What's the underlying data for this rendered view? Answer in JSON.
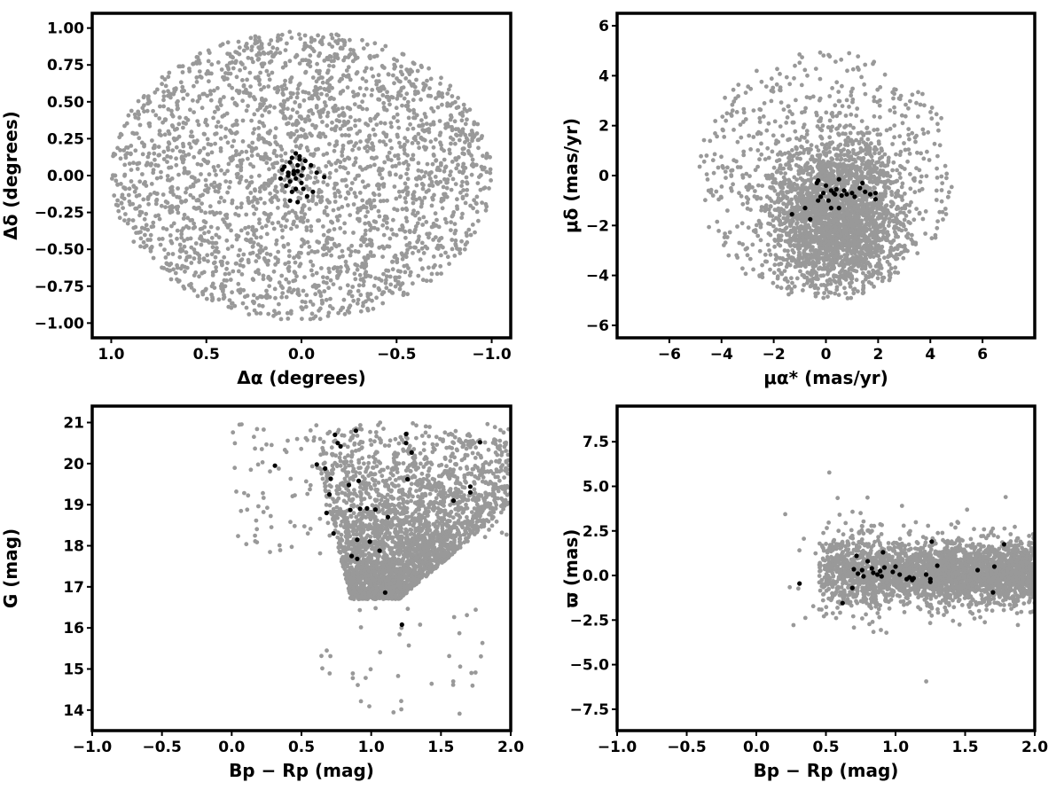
{
  "chart_data": [
    {
      "type": "scatter",
      "xlabel": "Δα (degrees)",
      "ylabel": "Δδ (degrees)",
      "xlim": [
        1.1,
        -1.1
      ],
      "ylim": [
        -1.1,
        1.1
      ],
      "x_inverted": true,
      "xticks": [
        1.0,
        0.5,
        0.0,
        -0.5,
        -1.0
      ],
      "xtick_labels": [
        "1.0",
        "0.5",
        "0.0",
        "−0.5",
        "−1.0"
      ],
      "yticks": [
        -1.0,
        -0.75,
        -0.5,
        -0.25,
        0.0,
        0.25,
        0.5,
        0.75,
        1.0
      ],
      "ytick_labels": [
        "−1.00",
        "−0.75",
        "−0.50",
        "−0.25",
        "0.00",
        "0.25",
        "0.50",
        "0.75",
        "1.00"
      ],
      "grid": false,
      "series": [
        {
          "color": "#999999",
          "distribution": "uniform disk",
          "center": [
            0.0,
            0.0
          ],
          "radius": [
            1.0,
            0.98
          ],
          "count": 2600
        },
        {
          "color": "#000000",
          "points": [
            [
              0.03,
              0.15
            ],
            [
              0.05,
              0.12
            ],
            [
              0.01,
              0.13
            ],
            [
              0.06,
              0.09
            ],
            [
              0.02,
              0.07
            ],
            [
              0.04,
              0.03
            ],
            [
              0.07,
              0.0
            ],
            [
              0.03,
              -0.02
            ],
            [
              0.06,
              -0.04
            ],
            [
              0.08,
              -0.07
            ],
            [
              0.05,
              -0.11
            ],
            [
              0.06,
              -0.17
            ],
            [
              0.02,
              -0.18
            ],
            [
              -0.01,
              -0.09
            ],
            [
              -0.03,
              -0.14
            ],
            [
              -0.06,
              -0.11
            ],
            [
              0.0,
              0.0
            ],
            [
              0.02,
              0.03
            ],
            [
              -0.01,
              0.05
            ],
            [
              0.01,
              0.11
            ],
            [
              0.09,
              0.06
            ],
            [
              0.1,
              0.04
            ],
            [
              0.03,
              -0.09
            ],
            [
              -0.02,
              0.1
            ],
            [
              -0.05,
              0.07
            ],
            [
              -0.08,
              0.02
            ],
            [
              0.11,
              -0.02
            ],
            [
              0.0,
              -0.05
            ],
            [
              -0.12,
              -0.01
            ],
            [
              0.04,
              0.01
            ],
            [
              0.07,
              0.02
            ]
          ]
        }
      ]
    },
    {
      "type": "scatter",
      "xlabel": "μα* (mas/yr)",
      "ylabel": "μδ (mas/yr)",
      "xlim": [
        -8.0,
        8.0
      ],
      "ylim": [
        -6.5,
        6.5
      ],
      "xticks": [
        -6,
        -4,
        -2,
        0,
        2,
        4,
        6
      ],
      "xtick_labels": [
        "−6",
        "−4",
        "−2",
        "0",
        "2",
        "4",
        "6"
      ],
      "yticks": [
        -6,
        -4,
        -2,
        0,
        2,
        4,
        6
      ],
      "ytick_labels": [
        "−6",
        "−4",
        "−2",
        "0",
        "2",
        "4",
        "6"
      ],
      "grid": false,
      "series": [
        {
          "color": "#999999",
          "distribution": "disk of radius 5 with dense core near (0.4, -1.5)",
          "count": 3000
        },
        {
          "color": "#000000",
          "points": [
            [
              -1.3,
              -1.55
            ],
            [
              -0.8,
              -1.3
            ],
            [
              -0.6,
              -1.75
            ],
            [
              -0.35,
              -0.3
            ],
            [
              -0.3,
              -0.2
            ],
            [
              -0.2,
              -0.85
            ],
            [
              -0.1,
              -0.7
            ],
            [
              0.0,
              -0.4
            ],
            [
              0.1,
              -1.0
            ],
            [
              0.2,
              -0.6
            ],
            [
              0.3,
              -0.7
            ],
            [
              0.4,
              -0.55
            ],
            [
              0.5,
              -0.15
            ],
            [
              0.6,
              -0.8
            ],
            [
              0.7,
              -0.6
            ],
            [
              0.8,
              -0.75
            ],
            [
              1.0,
              -0.7
            ],
            [
              1.1,
              -0.85
            ],
            [
              1.3,
              -0.5
            ],
            [
              1.4,
              -0.3
            ],
            [
              1.5,
              -0.65
            ],
            [
              1.7,
              -0.75
            ],
            [
              1.9,
              -0.7
            ],
            [
              1.9,
              -0.95
            ],
            [
              0.2,
              -1.3
            ],
            [
              0.5,
              -1.3
            ],
            [
              -0.3,
              -1.0
            ],
            [
              0.35,
              -0.75
            ]
          ]
        }
      ]
    },
    {
      "type": "scatter",
      "xlabel": "Bp − Rp (mag)",
      "ylabel": "G (mag)",
      "xlim": [
        -1.0,
        2.0
      ],
      "ylim": [
        13.5,
        21.4
      ],
      "xticks": [
        -1.0,
        -0.5,
        0.0,
        0.5,
        1.0,
        1.5,
        2.0
      ],
      "xtick_labels": [
        "−1.0",
        "−0.5",
        "0.0",
        "0.5",
        "1.0",
        "1.5",
        "2.0"
      ],
      "yticks": [
        14,
        15,
        16,
        17,
        18,
        19,
        20,
        21
      ],
      "ytick_labels": [
        "14",
        "15",
        "16",
        "17",
        "18",
        "19",
        "20",
        "21"
      ],
      "grid": false,
      "series": [
        {
          "color": "#999999",
          "distribution": "color-magnitude diagram, dense wedge from G 17 to 21",
          "count": 3000
        },
        {
          "color": "#000000",
          "points": [
            [
              0.31,
              19.95
            ],
            [
              0.61,
              19.98
            ],
            [
              0.67,
              19.88
            ],
            [
              0.7,
              19.25
            ],
            [
              0.71,
              19.63
            ],
            [
              0.68,
              18.8
            ],
            [
              0.73,
              18.3
            ],
            [
              0.74,
              20.7
            ],
            [
              0.76,
              20.5
            ],
            [
              0.78,
              20.42
            ],
            [
              0.84,
              19.48
            ],
            [
              0.85,
              18.87
            ],
            [
              0.86,
              17.75
            ],
            [
              0.89,
              20.8
            ],
            [
              0.91,
              19.58
            ],
            [
              0.9,
              18.15
            ],
            [
              0.9,
              17.68
            ],
            [
              0.92,
              18.9
            ],
            [
              0.97,
              18.91
            ],
            [
              0.99,
              18.1
            ],
            [
              1.03,
              18.88
            ],
            [
              1.06,
              17.88
            ],
            [
              1.1,
              16.86
            ],
            [
              1.12,
              18.7
            ],
            [
              1.22,
              16.08
            ],
            [
              1.25,
              20.72
            ],
            [
              1.25,
              20.5
            ],
            [
              1.26,
              19.62
            ],
            [
              1.29,
              20.27
            ],
            [
              1.59,
              19.1
            ],
            [
              1.71,
              19.44
            ],
            [
              1.71,
              19.3
            ],
            [
              1.78,
              20.52
            ]
          ]
        }
      ]
    },
    {
      "type": "scatter",
      "xlabel": "Bp − Rp (mag)",
      "ylabel": "ϖ (mas)",
      "xlim": [
        -1.0,
        2.0
      ],
      "ylim": [
        -8.7,
        9.5
      ],
      "xticks": [
        -1.0,
        -0.5,
        0.0,
        0.5,
        1.0,
        1.5,
        2.0
      ],
      "xtick_labels": [
        "−1.0",
        "−0.5",
        "0.0",
        "0.5",
        "1.0",
        "1.5",
        "2.0"
      ],
      "yticks": [
        -7.5,
        -5.0,
        -2.5,
        0.0,
        2.5,
        5.0,
        7.5
      ],
      "ytick_labels": [
        "−7.5",
        "−5.0",
        "−2.5",
        "0.0",
        "2.5",
        "5.0",
        "7.5"
      ],
      "grid": false,
      "series": [
        {
          "color": "#999999",
          "distribution": "band near parallax 0 from Bp-Rp 0.5 to 2.0",
          "count": 3000
        },
        {
          "color": "#000000",
          "points": [
            [
              0.31,
              -0.45
            ],
            [
              0.62,
              -1.55
            ],
            [
              0.69,
              -0.7
            ],
            [
              0.7,
              0.35
            ],
            [
              0.72,
              1.1
            ],
            [
              0.73,
              0.1
            ],
            [
              0.76,
              0.3
            ],
            [
              0.77,
              -0.05
            ],
            [
              0.8,
              0.8
            ],
            [
              0.83,
              0.4
            ],
            [
              0.84,
              0.15
            ],
            [
              0.87,
              0.05
            ],
            [
              0.89,
              0.25
            ],
            [
              0.9,
              -0.05
            ],
            [
              0.91,
              1.3
            ],
            [
              0.92,
              0.45
            ],
            [
              0.98,
              0.2
            ],
            [
              1.0,
              0.5
            ],
            [
              1.03,
              0.05
            ],
            [
              1.08,
              -0.2
            ],
            [
              1.1,
              -0.1
            ],
            [
              1.12,
              -0.25
            ],
            [
              1.13,
              -0.15
            ],
            [
              1.22,
              0.05
            ],
            [
              1.25,
              -0.2
            ],
            [
              1.25,
              -0.35
            ],
            [
              1.26,
              1.9
            ],
            [
              1.3,
              0.55
            ],
            [
              1.59,
              0.3
            ],
            [
              1.7,
              -0.95
            ],
            [
              1.71,
              0.5
            ],
            [
              1.78,
              1.75
            ]
          ]
        }
      ]
    }
  ]
}
